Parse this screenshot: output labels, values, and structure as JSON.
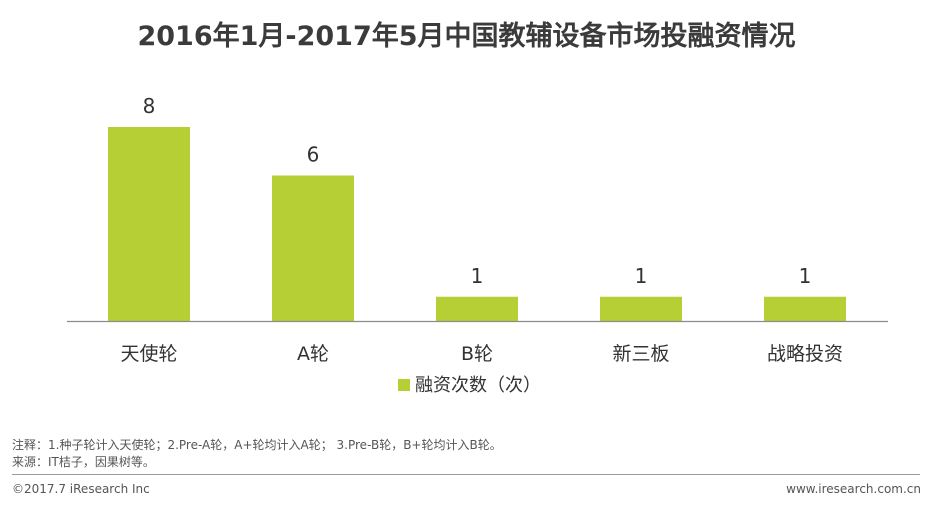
{
  "chart_data": {
    "type": "bar",
    "title": "2016年1月-2017年5月中国教辅设备市场投融资情况",
    "categories": [
      "天使轮",
      "A轮",
      "B轮",
      "新三板",
      "战略投资"
    ],
    "series": [
      {
        "name": "融资次数（次）",
        "values": [
          8,
          6,
          1,
          1,
          1
        ],
        "color": "#b5cf35"
      }
    ],
    "ylim": [
      0,
      8
    ],
    "grid": false,
    "legend": "bottom"
  },
  "notes": [
    "注释：1.种子轮计入天使轮；2.Pre-A轮，A+轮均计入A轮； 3.Pre-B轮，B+轮均计入B轮。",
    "来源：IT桔子，因果树等。"
  ],
  "footer": {
    "copyright": "©2017.7 iResearch Inc",
    "website": "www.iresearch.com.cn"
  }
}
